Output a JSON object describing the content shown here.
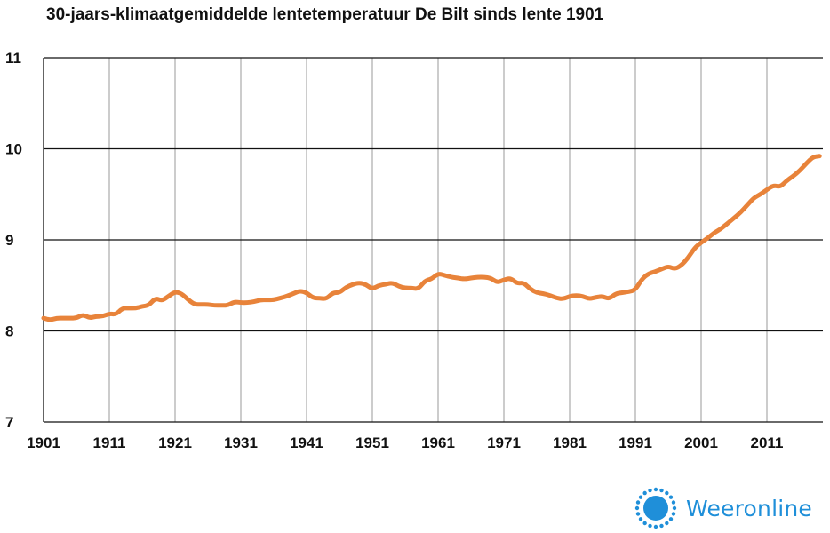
{
  "chart_data": {
    "type": "line",
    "title": "30-jaars-klimaatgemiddelde lentetemperatuur De Bilt sinds lente 1901",
    "xlabel": "",
    "ylabel": "",
    "xlim": [
      1901,
      2019
    ],
    "ylim": [
      7,
      11
    ],
    "x_ticks": [
      1901,
      1911,
      1921,
      1931,
      1941,
      1951,
      1961,
      1971,
      1981,
      1991,
      2001,
      2011
    ],
    "y_ticks": [
      7,
      8,
      9,
      10,
      11
    ],
    "grid": true,
    "colors": {
      "line": "#e8833a",
      "grid": "#111111"
    },
    "series": [
      {
        "x": [
          1901,
          1902,
          1903,
          1904,
          1905,
          1906,
          1907,
          1908,
          1909,
          1910,
          1911,
          1912,
          1913,
          1914,
          1915,
          1916,
          1917,
          1918,
          1919,
          1920,
          1921,
          1922,
          1923,
          1924,
          1925,
          1926,
          1927,
          1928,
          1929,
          1930,
          1931,
          1932,
          1933,
          1934,
          1935,
          1936,
          1937,
          1938,
          1939,
          1940,
          1941,
          1942,
          1943,
          1944,
          1945,
          1946,
          1947,
          1948,
          1949,
          1950,
          1951,
          1952,
          1953,
          1954,
          1955,
          1956,
          1957,
          1958,
          1959,
          1960,
          1961,
          1962,
          1963,
          1964,
          1965,
          1966,
          1967,
          1968,
          1969,
          1970,
          1971,
          1972,
          1973,
          1974,
          1975,
          1976,
          1977,
          1978,
          1979,
          1980,
          1981,
          1982,
          1983,
          1984,
          1985,
          1986,
          1987,
          1988,
          1989,
          1990,
          1991,
          1992,
          1993,
          1994,
          1995,
          1996,
          1997,
          1998,
          1999,
          2000,
          2001,
          2002,
          2003,
          2004,
          2005,
          2006,
          2007,
          2008,
          2009,
          2010,
          2011,
          2012,
          2013,
          2014,
          2015,
          2016,
          2017,
          2018,
          2019
        ],
        "values": [
          8.14,
          8.12,
          8.14,
          8.14,
          8.14,
          8.14,
          8.18,
          8.14,
          8.16,
          8.16,
          8.19,
          8.18,
          8.25,
          8.25,
          8.25,
          8.27,
          8.28,
          8.36,
          8.33,
          8.38,
          8.43,
          8.41,
          8.34,
          8.29,
          8.29,
          8.29,
          8.28,
          8.28,
          8.28,
          8.32,
          8.31,
          8.31,
          8.32,
          8.34,
          8.34,
          8.34,
          8.36,
          8.38,
          8.41,
          8.44,
          8.42,
          8.36,
          8.36,
          8.35,
          8.42,
          8.42,
          8.48,
          8.51,
          8.53,
          8.51,
          8.46,
          8.5,
          8.51,
          8.53,
          8.49,
          8.47,
          8.47,
          8.46,
          8.55,
          8.57,
          8.63,
          8.61,
          8.59,
          8.58,
          8.57,
          8.58,
          8.59,
          8.59,
          8.58,
          8.53,
          8.56,
          8.58,
          8.52,
          8.53,
          8.46,
          8.42,
          8.41,
          8.39,
          8.36,
          8.35,
          8.38,
          8.39,
          8.38,
          8.35,
          8.37,
          8.38,
          8.35,
          8.41,
          8.42,
          8.43,
          8.45,
          8.57,
          8.63,
          8.65,
          8.68,
          8.71,
          8.68,
          8.72,
          8.8,
          8.91,
          8.97,
          9.02,
          9.08,
          9.12,
          9.18,
          9.24,
          9.3,
          9.38,
          9.46,
          9.5,
          9.55,
          9.6,
          9.58,
          9.65,
          9.7,
          9.76,
          9.84,
          9.91,
          9.92
        ]
      }
    ]
  },
  "brand": {
    "name": "Weeronline",
    "icon": "sun-icon"
  }
}
